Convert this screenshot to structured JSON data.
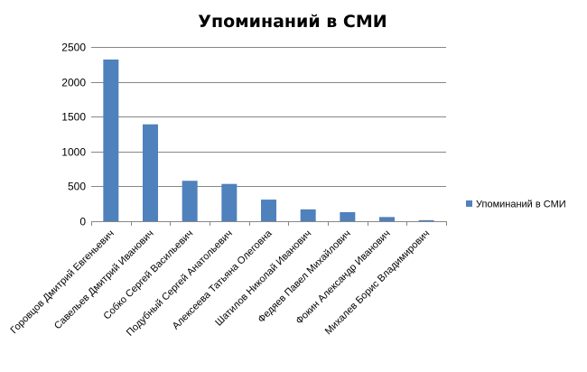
{
  "chart_data": {
    "type": "bar",
    "title": "Упоминаний в СМИ",
    "xlabel": "",
    "ylabel": "",
    "categories": [
      "Горовцов Дмитрий Евгеньевич",
      "Савельев Дмитрий Иванович",
      "Собко Сергей Васильевич",
      "Подубный Сергей Анатольевич",
      "Алексеева Татьяна Олеговна",
      "Шатилов Николай Иванович",
      "Федяев Павел Михайлович",
      "Фокин Александр Иванович",
      "Михалев Борис Владимирович"
    ],
    "series": [
      {
        "name": "Упоминаний в СМИ",
        "values": [
          2320,
          1390,
          580,
          535,
          310,
          170,
          130,
          60,
          15
        ],
        "color": "#4F81BD"
      }
    ],
    "ylim": [
      0,
      2500
    ],
    "yticks": [
      0,
      500,
      1000,
      1500,
      2000,
      2500
    ],
    "grid": true,
    "legend": "right"
  }
}
